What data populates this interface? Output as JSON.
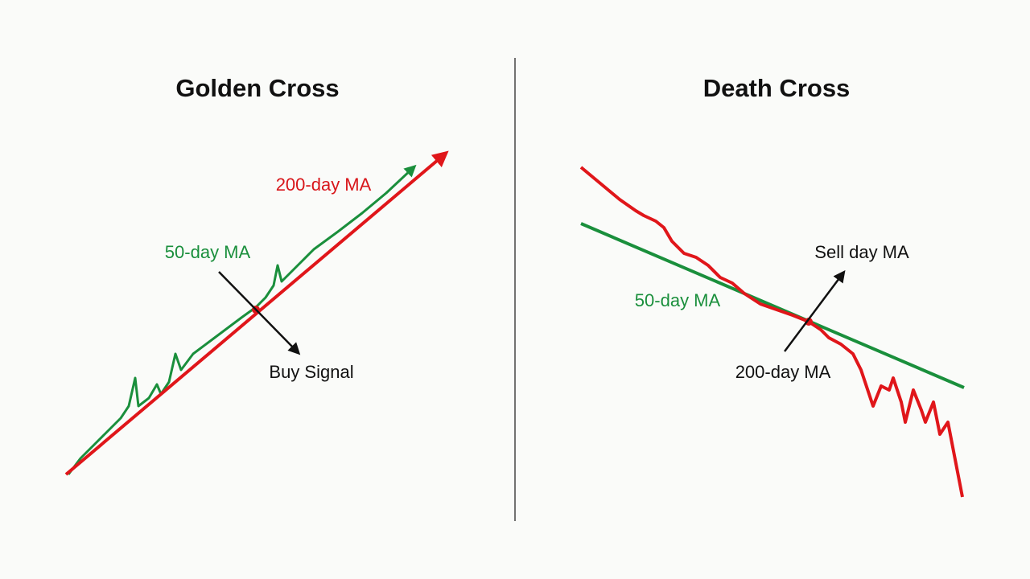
{
  "left": {
    "title": "Golden Cross",
    "labels": [
      "200-day MA",
      "50-day MA",
      "Buy Signal"
    ]
  },
  "right": {
    "title": "Death Cross",
    "labels": [
      "Sell day MA",
      "50-day MA",
      "200-day MA"
    ]
  }
}
